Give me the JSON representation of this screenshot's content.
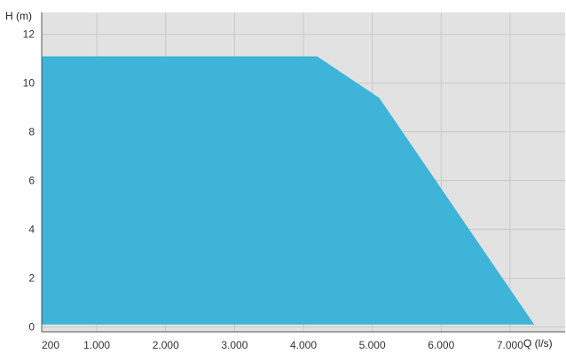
{
  "chart_data": {
    "type": "area",
    "title": "",
    "xlabel": "Q (l/s)",
    "ylabel": "H (m)",
    "xlim": [
      200,
      7800
    ],
    "ylim": [
      -0.2,
      12.9
    ],
    "x_ticks": [
      200,
      1000,
      2000,
      3000,
      4000,
      5000,
      6000,
      7000
    ],
    "x_tick_labels": [
      "200",
      "1.000",
      "2.000",
      "3.000",
      "4.000",
      "5.000",
      "6.000",
      "7.000"
    ],
    "y_ticks": [
      0,
      2,
      4,
      6,
      8,
      10,
      12
    ],
    "y_tick_labels": [
      "0",
      "2",
      "4",
      "6",
      "8",
      "10",
      "12"
    ],
    "grid": true,
    "series": [
      {
        "x": [
          200,
          4200,
          5100,
          7350,
          200
        ],
        "y": [
          11.1,
          11.1,
          9.4,
          0.1,
          0.1
        ]
      }
    ],
    "colors": {
      "fill": "#3db4d8",
      "plot_background": "#e2e2e2",
      "grid": "#c9c9c9",
      "axis": "#555555"
    }
  }
}
